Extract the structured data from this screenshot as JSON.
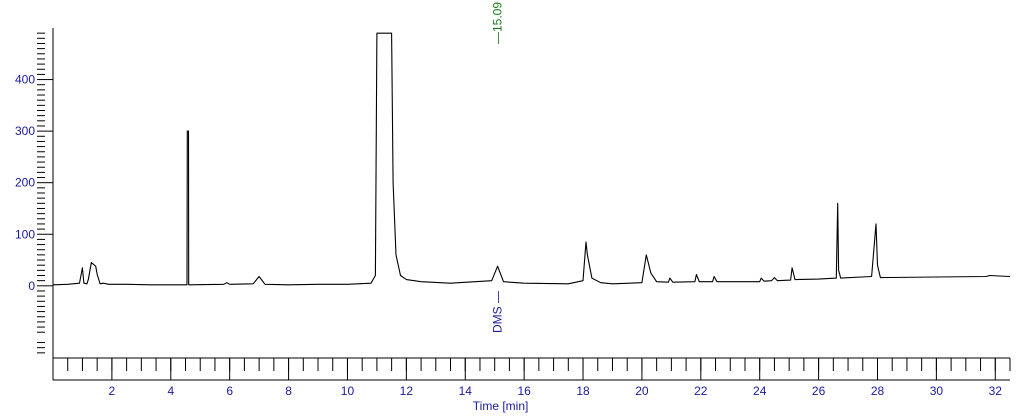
{
  "chart_data": {
    "type": "line",
    "title": "",
    "xlabel": "Time [min]",
    "ylabel": "",
    "xlim": [
      0,
      32.5
    ],
    "ylim": [
      -140,
      500
    ],
    "x_ticks": [
      2,
      4,
      6,
      8,
      10,
      12,
      14,
      16,
      18,
      20,
      22,
      24,
      26,
      28,
      30,
      32
    ],
    "y_ticks": [
      0,
      100,
      200,
      300,
      400
    ],
    "grid": false,
    "colors": {
      "trace": "#000000",
      "axis_labels": "#1a1aa0",
      "retention_time": "#1a7a1a"
    },
    "series": [
      {
        "x": [
          0,
          0.5,
          0.9,
          1.0,
          1.05,
          1.15,
          1.2,
          1.3,
          1.45,
          1.5,
          1.6,
          1.7,
          1.9,
          2.5,
          3.3,
          4.55,
          4.56,
          4.6,
          4.61,
          5.8,
          5.9,
          6.0,
          6.8,
          7.0,
          7.2,
          8.0,
          9.0,
          10.0,
          10.8,
          10.95,
          11.0,
          11.5,
          11.55,
          11.65,
          11.8,
          12.0,
          12.5,
          13.5,
          14.9,
          15.1,
          15.3,
          16.0,
          17.5,
          18.0,
          18.1,
          18.15,
          18.3,
          18.6,
          19.0,
          20.0,
          20.15,
          20.3,
          20.5,
          20.9,
          20.95,
          21.05,
          21.8,
          21.85,
          21.95,
          22.4,
          22.45,
          22.55,
          24.0,
          24.05,
          24.15,
          24.4,
          24.5,
          24.6,
          25.05,
          25.1,
          25.2,
          26.0,
          26.6,
          26.65,
          26.68,
          26.75,
          27.8,
          27.95,
          28.0,
          28.1,
          30.0,
          31.7,
          31.8,
          32.5
        ],
        "y": [
          2,
          3,
          5,
          35,
          5,
          4,
          12,
          45,
          38,
          22,
          4,
          5,
          3,
          3,
          2,
          2,
          300,
          300,
          2,
          3,
          6,
          3,
          4,
          18,
          3,
          2,
          3,
          3,
          5,
          20,
          490,
          490,
          200,
          60,
          20,
          12,
          8,
          5,
          10,
          38,
          8,
          5,
          4,
          10,
          85,
          60,
          15,
          6,
          4,
          6,
          60,
          25,
          8,
          7,
          15,
          7,
          8,
          22,
          8,
          8,
          18,
          8,
          8,
          15,
          9,
          10,
          16,
          10,
          11,
          35,
          12,
          13,
          15,
          160,
          30,
          15,
          18,
          120,
          40,
          16,
          17,
          18,
          20,
          18
        ]
      }
    ],
    "annotations": [
      {
        "x": 15.09,
        "label": "15.09",
        "name": "DMS"
      }
    ]
  }
}
